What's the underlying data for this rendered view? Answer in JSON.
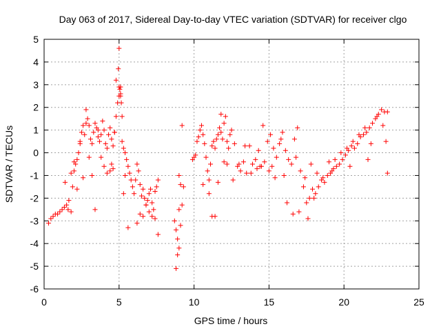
{
  "chart_data": {
    "type": "scatter",
    "title": "Day 063 of 2017, Sidereal Day-to-day VTEC variation (SDTVAR) for receiver clgo",
    "xlabel": "GPS time / hours",
    "ylabel": "SDTVAR / TECUs",
    "xlim": [
      0,
      25
    ],
    "ylim": [
      -6,
      5
    ],
    "xticks": [
      0,
      5,
      10,
      15,
      20,
      25
    ],
    "yticks": [
      -6,
      -5,
      -4,
      -3,
      -2,
      -1,
      0,
      1,
      2,
      3,
      4,
      5
    ],
    "grid": true,
    "marker": "+",
    "color": "#ff0000",
    "series": [
      {
        "name": "SDTVAR",
        "x": [
          0.3,
          0.45,
          0.6,
          0.75,
          0.9,
          1.05,
          1.2,
          1.35,
          1.5,
          1.65,
          1.8,
          1.9,
          2.0,
          2.1,
          2.2,
          2.3,
          2.4,
          2.5,
          2.6,
          2.7,
          2.8,
          2.9,
          3.0,
          3.1,
          3.2,
          3.3,
          3.4,
          3.5,
          3.6,
          3.7,
          3.8,
          3.9,
          4.0,
          4.1,
          4.2,
          4.3,
          4.4,
          4.5,
          4.6,
          4.7,
          4.8,
          4.9,
          5.0,
          5.05,
          5.1,
          5.15,
          5.2,
          5.3,
          5.4,
          5.5,
          5.6,
          5.7,
          5.8,
          5.9,
          6.0,
          6.1,
          6.2,
          6.3,
          6.4,
          6.5,
          6.6,
          6.7,
          6.8,
          6.9,
          7.0,
          7.1,
          7.2,
          7.3,
          7.4,
          7.5,
          7.6,
          8.7,
          8.8,
          8.9,
          9.0,
          9.1,
          9.2,
          9.3,
          9.9,
          10.0,
          10.1,
          10.2,
          10.3,
          10.4,
          10.5,
          10.6,
          10.7,
          10.8,
          10.9,
          11.0,
          11.1,
          11.2,
          11.3,
          11.4,
          11.5,
          11.6,
          11.7,
          11.8,
          11.9,
          12.0,
          12.1,
          12.2,
          12.3,
          12.4,
          12.5,
          12.7,
          12.9,
          13.1,
          13.3,
          13.5,
          13.7,
          13.9,
          14.1,
          14.3,
          14.5,
          14.7,
          14.9,
          15.1,
          15.3,
          15.5,
          15.7,
          15.9,
          16.1,
          16.3,
          16.5,
          16.7,
          16.9,
          17.1,
          17.3,
          17.5,
          17.7,
          17.9,
          18.1,
          18.3,
          18.5,
          18.7,
          18.9,
          19.1,
          19.3,
          19.5,
          19.7,
          19.9,
          20.1,
          20.3,
          20.5,
          20.7,
          20.9,
          21.1,
          21.3,
          21.5,
          21.7,
          21.9,
          22.1,
          22.3,
          22.5,
          22.7,
          22.9,
          4.4,
          4.5,
          4.6,
          4.7,
          4.8,
          4.95,
          5.0,
          5.1,
          5.2,
          5.3,
          1.4,
          1.6,
          1.8,
          2.0,
          2.2,
          2.4,
          2.6,
          2.8,
          3.0,
          3.2,
          3.4,
          6.2,
          6.4,
          6.6,
          6.8,
          7.0,
          7.2,
          7.4,
          7.6,
          8.9,
          9.0,
          9.1,
          9.2,
          10.6,
          11.0,
          11.4,
          11.8,
          12.2,
          12.6,
          13.0,
          13.4,
          13.8,
          14.2,
          14.6,
          15.0,
          15.4,
          15.8,
          16.2,
          16.6,
          17.0,
          17.4,
          17.8,
          18.2,
          18.6,
          19.0,
          19.4,
          19.8,
          20.2,
          20.6,
          21.0,
          21.4,
          21.8,
          22.2,
          22.6,
          22.9,
          3.6,
          3.8,
          4.0,
          4.2,
          5.4,
          5.6,
          11.2,
          11.6,
          12.0,
          14.4,
          15.2,
          16.0,
          16.8,
          17.6,
          18.0,
          19.2,
          20.4,
          21.6,
          22.8,
          5.0,
          5.1,
          8.8,
          9.0
        ],
        "y": [
          -3.1,
          -2.9,
          -2.8,
          -2.7,
          -2.7,
          -2.6,
          -2.5,
          -2.4,
          -2.3,
          -2.1,
          -2.6,
          -1.5,
          -0.8,
          -0.5,
          -0.3,
          0.0,
          0.5,
          0.9,
          1.2,
          0.8,
          1.3,
          1.5,
          1.2,
          0.6,
          0.4,
          0.9,
          1.3,
          1.1,
          0.7,
          0.5,
          0.8,
          1.4,
          1.0,
          0.4,
          0.2,
          0.8,
          1.1,
          0.6,
          0.3,
          0.9,
          1.6,
          2.2,
          2.5,
          2.8,
          2.6,
          2.2,
          0.5,
          0.2,
          0.0,
          -0.3,
          -0.6,
          -0.9,
          -1.2,
          -1.5,
          -1.8,
          -1.2,
          -0.5,
          -0.8,
          -1.4,
          -1.9,
          -1.6,
          -2.0,
          -2.3,
          -2.1,
          -1.8,
          -1.6,
          -2.2,
          -2.5,
          -2.9,
          -1.5,
          -1.2,
          -3.0,
          -3.4,
          -3.8,
          -4.2,
          -3.2,
          -2.3,
          -1.5,
          -0.3,
          -0.2,
          -0.1,
          0.5,
          0.7,
          1.0,
          1.2,
          0.8,
          0.4,
          -0.2,
          -0.8,
          -1.2,
          -0.5,
          0.3,
          0.5,
          0.2,
          0.6,
          0.8,
          1.1,
          0.9,
          0.6,
          1.3,
          1.6,
          0.5,
          0.2,
          0.8,
          1.0,
          0.4,
          -0.6,
          -0.8,
          -0.4,
          -0.9,
          0.3,
          -0.5,
          -0.3,
          0.1,
          -0.6,
          -0.4,
          0.5,
          0.8,
          0.2,
          -0.2,
          0.4,
          0.9,
          0.1,
          -0.3,
          -0.5,
          0.6,
          1.1,
          -0.8,
          -1.5,
          -2.2,
          -2.0,
          -1.6,
          -1.8,
          -1.5,
          -1.2,
          -1.3,
          -1.0,
          -0.9,
          -0.7,
          -0.6,
          -0.5,
          -0.3,
          -0.1,
          0.1,
          0.3,
          0.2,
          0.4,
          0.7,
          0.8,
          0.9,
          1.1,
          1.3,
          1.5,
          1.7,
          1.9,
          1.8,
          -0.9,
          -0.8,
          -0.5,
          -0.7,
          0.9,
          3.2,
          3.7,
          2.9,
          2.5,
          1.6,
          -1.8,
          -1.3,
          -2.5,
          -0.9,
          -0.4,
          -1.6,
          0.4,
          -1.1,
          1.9,
          -0.2,
          -1.0,
          -2.5,
          -3.1,
          -2.7,
          -2.8,
          -2.3,
          -2.6,
          -2.8,
          -1.7,
          -3.6,
          -4.5,
          -2.5,
          -1.4,
          1.2,
          -1.4,
          -1.8,
          -2.8,
          1.7,
          -0.5,
          -1.2,
          -0.5,
          0.3,
          -0.9,
          -0.7,
          1.2,
          -0.8,
          -1.1,
          0.6,
          -2.2,
          -2.7,
          -2.6,
          -1.1,
          -0.5,
          -0.9,
          -1.1,
          -0.4,
          -0.3,
          0.0,
          0.2,
          0.5,
          0.8,
          1.1,
          0.4,
          1.6,
          1.2,
          1.8,
          1.0,
          -0.2,
          -0.6,
          -0.9,
          -1.0,
          -3.3,
          -2.8,
          -1.3,
          -0.4,
          -0.6,
          -0.6,
          -1.0,
          -0.2,
          -2.9,
          -2.0,
          -0.8,
          -0.6,
          -0.3,
          0.5,
          4.6,
          2.9,
          -5.1,
          -1.0
        ]
      }
    ]
  }
}
